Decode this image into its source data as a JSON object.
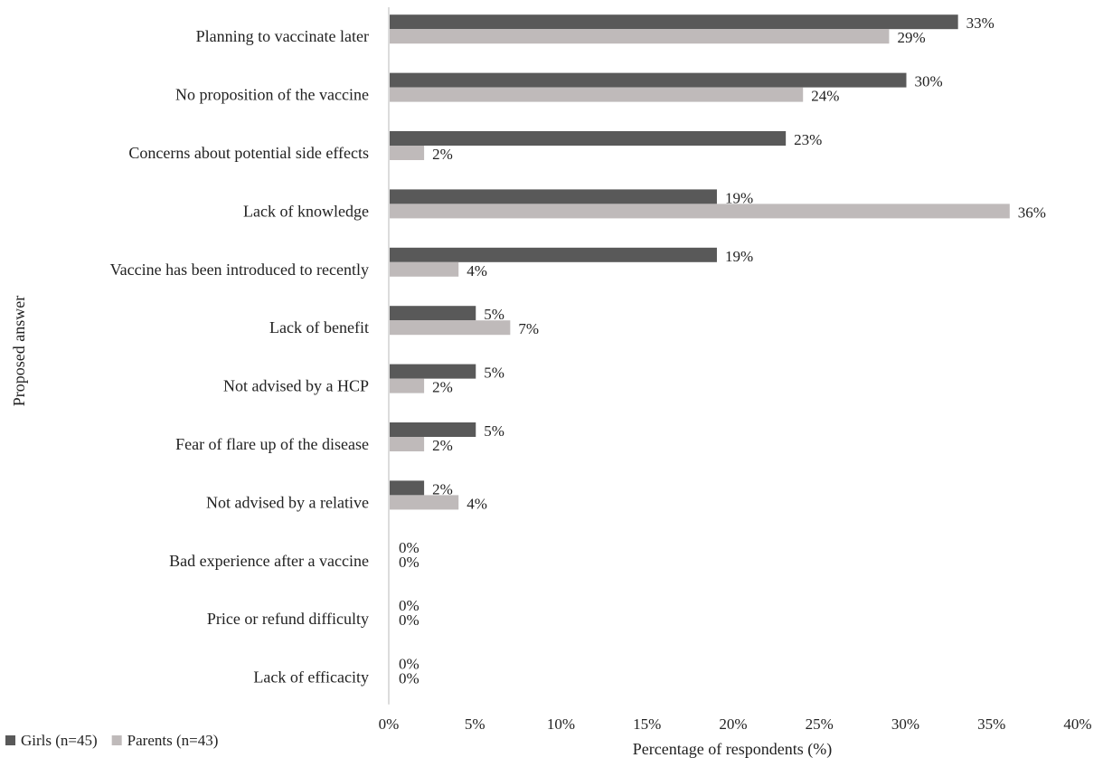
{
  "chart_data": {
    "type": "bar",
    "orientation": "horizontal",
    "xlabel": "Percentage of respondents (%)",
    "ylabel": "Proposed answer",
    "xlim": [
      0,
      40
    ],
    "x_ticks": [
      0,
      5,
      10,
      15,
      20,
      25,
      30,
      35,
      40
    ],
    "tick_suffix": "%",
    "grid": false,
    "legend_position": "bottom-left",
    "categories": [
      "Planning to vaccinate later",
      "No proposition of the vaccine",
      "Concerns about potential side effects",
      "Lack of knowledge",
      "Vaccine has been introduced to recently",
      "Lack of benefit",
      "Not advised by a HCP",
      "Fear of flare up of the disease",
      "Not advised by a relative",
      "Bad experience after a vaccine",
      "Price or refund difficulty",
      "Lack of efficacity"
    ],
    "series": [
      {
        "name": "Girls (n=45)",
        "color": "#595959",
        "values": [
          33,
          30,
          23,
          19,
          19,
          5,
          5,
          5,
          2,
          0,
          0,
          0
        ]
      },
      {
        "name": "Parents (n=43)",
        "color": "#bfbaba",
        "values": [
          29,
          24,
          2,
          36,
          4,
          7,
          2,
          2,
          4,
          0,
          0,
          0
        ]
      }
    ]
  }
}
